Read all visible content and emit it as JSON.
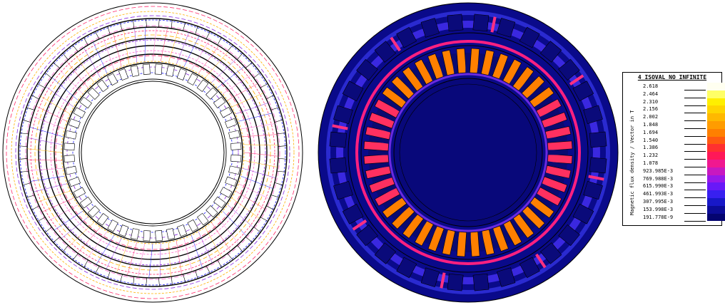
{
  "legend": {
    "title": "4_ISOVAL_NO_INFINITE",
    "axis_label": "Magnetic flux density / Vector in T",
    "entries": [
      {
        "value": "2.618",
        "color": "#fffff0"
      },
      {
        "value": "2.464",
        "color": "#ffff66"
      },
      {
        "value": "2.310",
        "color": "#ffef00"
      },
      {
        "value": "2.156",
        "color": "#ffd400"
      },
      {
        "value": "2.002",
        "color": "#ffb800"
      },
      {
        "value": "1.848",
        "color": "#ff9c00"
      },
      {
        "value": "1.694",
        "color": "#ff8000"
      },
      {
        "value": "1.540",
        "color": "#ff5a10"
      },
      {
        "value": "1.386",
        "color": "#ff3030"
      },
      {
        "value": "1.232",
        "color": "#ff1858"
      },
      {
        "value": "1.078",
        "color": "#f01890"
      },
      {
        "value": "923.985E-3",
        "color": "#c818c0"
      },
      {
        "value": "769.988E-3",
        "color": "#9818e8"
      },
      {
        "value": "615.990E-3",
        "color": "#6818f8"
      },
      {
        "value": "461.993E-3",
        "color": "#3820f0"
      },
      {
        "value": "307.995E-3",
        "color": "#1818c8"
      },
      {
        "value": "153.998E-3",
        "color": "#0c0c98"
      },
      {
        "value": "191.778E-9",
        "color": "#040470"
      }
    ]
  },
  "colors": {
    "background_field": "#0a0a8a",
    "air_gap": "#08087a",
    "hot_tooth": "#ff8000",
    "warm_tooth": "#ff3060",
    "contour_lines": [
      "#ff2a6a",
      "#ffb000",
      "#8a2be2",
      "#1a1aff",
      "#ff66cc"
    ]
  }
}
